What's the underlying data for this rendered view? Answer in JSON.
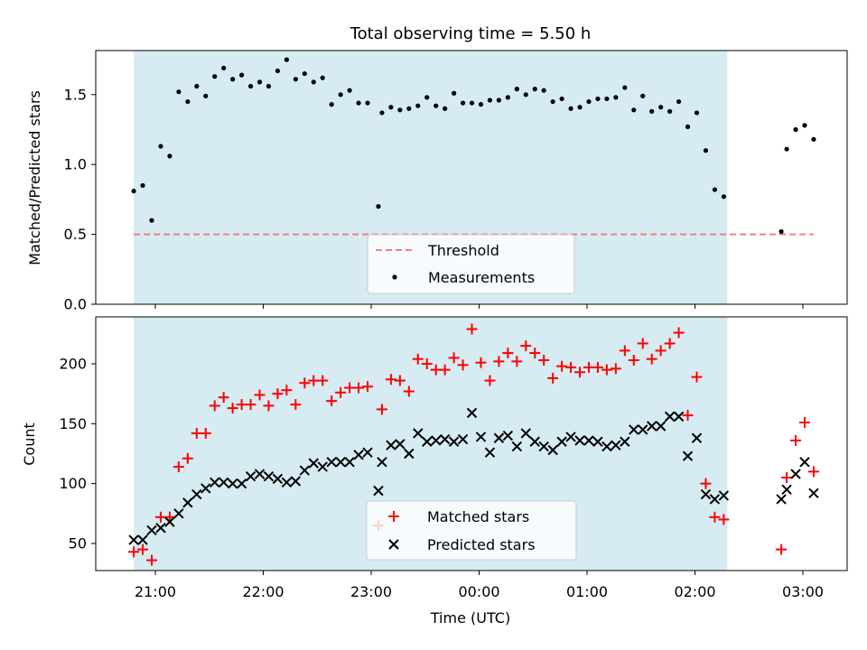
{
  "chart_data": [
    {
      "type": "scatter",
      "title": "Total observing time = 5.50 h",
      "xlabel": "",
      "ylabel": "Matched/Predicted stars",
      "ylim": [
        0,
        1.82
      ],
      "yticks": [
        "0.0",
        "0.5",
        "1.0",
        "1.5"
      ],
      "x_tick_labels": [],
      "shaded_span": {
        "start": "20:48",
        "end": "02:18"
      },
      "legend_placement": "lower center",
      "threshold": {
        "name": "Threshold",
        "value": 0.5,
        "x_start": "20:48",
        "x_end": "03:06",
        "color": "#f08080"
      },
      "series": [
        {
          "name": "Measurements",
          "color": "#000000",
          "marker": "dot",
          "points": [
            [
              "20:48",
              0.81
            ],
            [
              "20:53",
              0.85
            ],
            [
              "20:58",
              0.6
            ],
            [
              "21:03",
              1.13
            ],
            [
              "21:08",
              1.06
            ],
            [
              "21:13",
              1.52
            ],
            [
              "21:18",
              1.45
            ],
            [
              "21:23",
              1.56
            ],
            [
              "21:28",
              1.49
            ],
            [
              "21:33",
              1.63
            ],
            [
              "21:38",
              1.69
            ],
            [
              "21:43",
              1.61
            ],
            [
              "21:48",
              1.64
            ],
            [
              "21:53",
              1.56
            ],
            [
              "21:58",
              1.59
            ],
            [
              "22:03",
              1.56
            ],
            [
              "22:08",
              1.67
            ],
            [
              "22:13",
              1.75
            ],
            [
              "22:18",
              1.61
            ],
            [
              "22:23",
              1.65
            ],
            [
              "22:28",
              1.59
            ],
            [
              "22:33",
              1.62
            ],
            [
              "22:38",
              1.43
            ],
            [
              "22:43",
              1.5
            ],
            [
              "22:48",
              1.53
            ],
            [
              "22:53",
              1.44
            ],
            [
              "22:58",
              1.44
            ],
            [
              "23:04",
              0.7
            ],
            [
              "23:06",
              1.37
            ],
            [
              "23:11",
              1.41
            ],
            [
              "23:16",
              1.39
            ],
            [
              "23:21",
              1.4
            ],
            [
              "23:26",
              1.42
            ],
            [
              "23:31",
              1.48
            ],
            [
              "23:36",
              1.42
            ],
            [
              "23:41",
              1.4
            ],
            [
              "23:46",
              1.51
            ],
            [
              "23:51",
              1.44
            ],
            [
              "23:56",
              1.44
            ],
            [
              "00:01",
              1.43
            ],
            [
              "00:06",
              1.46
            ],
            [
              "00:11",
              1.46
            ],
            [
              "00:16",
              1.48
            ],
            [
              "00:21",
              1.54
            ],
            [
              "00:26",
              1.5
            ],
            [
              "00:31",
              1.54
            ],
            [
              "00:36",
              1.53
            ],
            [
              "00:41",
              1.45
            ],
            [
              "00:46",
              1.47
            ],
            [
              "00:51",
              1.4
            ],
            [
              "00:56",
              1.41
            ],
            [
              "01:01",
              1.45
            ],
            [
              "01:06",
              1.47
            ],
            [
              "01:11",
              1.47
            ],
            [
              "01:16",
              1.48
            ],
            [
              "01:21",
              1.55
            ],
            [
              "01:26",
              1.39
            ],
            [
              "01:31",
              1.49
            ],
            [
              "01:36",
              1.38
            ],
            [
              "01:41",
              1.41
            ],
            [
              "01:46",
              1.38
            ],
            [
              "01:51",
              1.45
            ],
            [
              "01:56",
              1.27
            ],
            [
              "02:01",
              1.37
            ],
            [
              "02:06",
              1.1
            ],
            [
              "02:11",
              0.82
            ],
            [
              "02:16",
              0.77
            ],
            [
              "02:48",
              0.52
            ],
            [
              "02:51",
              1.11
            ],
            [
              "02:56",
              1.25
            ],
            [
              "03:01",
              1.28
            ],
            [
              "03:06",
              1.18
            ]
          ]
        }
      ]
    },
    {
      "type": "scatter",
      "title": "",
      "xlabel": "Time (UTC)",
      "ylabel": "Count",
      "ylim": [
        25,
        240
      ],
      "yticks": [
        "50",
        "100",
        "150",
        "200"
      ],
      "x_tick_labels": [
        "21:00",
        "22:00",
        "23:00",
        "00:00",
        "01:00",
        "02:00",
        "03:00"
      ],
      "shaded_span": {
        "start": "20:48",
        "end": "02:18"
      },
      "legend_placement": "lower center",
      "series": [
        {
          "name": "Matched stars",
          "color": "#ff0000",
          "marker": "plus",
          "points": [
            [
              "20:48",
              43
            ],
            [
              "20:53",
              45
            ],
            [
              "20:58",
              36
            ],
            [
              "21:03",
              72
            ],
            [
              "21:08",
              72
            ],
            [
              "21:13",
              114
            ],
            [
              "21:18",
              121
            ],
            [
              "21:23",
              142
            ],
            [
              "21:28",
              142
            ],
            [
              "21:33",
              165
            ],
            [
              "21:38",
              172
            ],
            [
              "21:43",
              163
            ],
            [
              "21:48",
              166
            ],
            [
              "21:53",
              166
            ],
            [
              "21:58",
              174
            ],
            [
              "22:03",
              165
            ],
            [
              "22:08",
              175
            ],
            [
              "22:13",
              178
            ],
            [
              "22:18",
              166
            ],
            [
              "22:23",
              184
            ],
            [
              "22:28",
              186
            ],
            [
              "22:33",
              186
            ],
            [
              "22:38",
              169
            ],
            [
              "22:43",
              176
            ],
            [
              "22:48",
              180
            ],
            [
              "22:53",
              180
            ],
            [
              "22:58",
              181
            ],
            [
              "23:04",
              65
            ],
            [
              "23:06",
              162
            ],
            [
              "23:11",
              187
            ],
            [
              "23:16",
              186
            ],
            [
              "23:21",
              177
            ],
            [
              "23:26",
              204
            ],
            [
              "23:31",
              200
            ],
            [
              "23:36",
              195
            ],
            [
              "23:41",
              195
            ],
            [
              "23:46",
              205
            ],
            [
              "23:51",
              199
            ],
            [
              "23:56",
              229
            ],
            [
              "00:01",
              201
            ],
            [
              "00:06",
              186
            ],
            [
              "00:11",
              202
            ],
            [
              "00:16",
              209
            ],
            [
              "00:21",
              202
            ],
            [
              "00:26",
              215
            ],
            [
              "00:31",
              209
            ],
            [
              "00:36",
              203
            ],
            [
              "00:41",
              188
            ],
            [
              "00:46",
              198
            ],
            [
              "00:51",
              197
            ],
            [
              "00:56",
              193
            ],
            [
              "01:01",
              197
            ],
            [
              "01:06",
              197
            ],
            [
              "01:11",
              195
            ],
            [
              "01:16",
              196
            ],
            [
              "01:21",
              211
            ],
            [
              "01:26",
              203
            ],
            [
              "01:31",
              217
            ],
            [
              "01:36",
              204
            ],
            [
              "01:41",
              211
            ],
            [
              "01:46",
              217
            ],
            [
              "01:51",
              226
            ],
            [
              "01:56",
              157
            ],
            [
              "02:01",
              189
            ],
            [
              "02:06",
              100
            ],
            [
              "02:11",
              72
            ],
            [
              "02:16",
              70
            ],
            [
              "02:48",
              45
            ],
            [
              "02:51",
              105
            ],
            [
              "02:56",
              136
            ],
            [
              "03:01",
              151
            ],
            [
              "03:06",
              110
            ]
          ]
        },
        {
          "name": "Predicted stars",
          "color": "#000000",
          "marker": "x",
          "points": [
            [
              "20:48",
              53
            ],
            [
              "20:53",
              53
            ],
            [
              "20:58",
              61
            ],
            [
              "21:03",
              63
            ],
            [
              "21:08",
              68
            ],
            [
              "21:13",
              75
            ],
            [
              "21:18",
              84
            ],
            [
              "21:23",
              91
            ],
            [
              "21:28",
              96
            ],
            [
              "21:33",
              101
            ],
            [
              "21:38",
              101
            ],
            [
              "21:43",
              100
            ],
            [
              "21:48",
              100
            ],
            [
              "21:53",
              106
            ],
            [
              "21:58",
              108
            ],
            [
              "22:03",
              106
            ],
            [
              "22:08",
              104
            ],
            [
              "22:13",
              101
            ],
            [
              "22:18",
              102
            ],
            [
              "22:23",
              111
            ],
            [
              "22:28",
              117
            ],
            [
              "22:33",
              114
            ],
            [
              "22:38",
              118
            ],
            [
              "22:43",
              118
            ],
            [
              "22:48",
              118
            ],
            [
              "22:53",
              124
            ],
            [
              "22:58",
              126
            ],
            [
              "23:04",
              94
            ],
            [
              "23:06",
              118
            ],
            [
              "23:11",
              132
            ],
            [
              "23:16",
              133
            ],
            [
              "23:21",
              125
            ],
            [
              "23:26",
              142
            ],
            [
              "23:31",
              135
            ],
            [
              "23:36",
              136
            ],
            [
              "23:41",
              137
            ],
            [
              "23:46",
              135
            ],
            [
              "23:51",
              137
            ],
            [
              "23:56",
              159
            ],
            [
              "00:01",
              139
            ],
            [
              "00:06",
              126
            ],
            [
              "00:11",
              138
            ],
            [
              "00:16",
              140
            ],
            [
              "00:21",
              131
            ],
            [
              "00:26",
              142
            ],
            [
              "00:31",
              135
            ],
            [
              "00:36",
              131
            ],
            [
              "00:41",
              128
            ],
            [
              "00:46",
              135
            ],
            [
              "00:51",
              139
            ],
            [
              "00:56",
              136
            ],
            [
              "01:01",
              136
            ],
            [
              "01:06",
              135
            ],
            [
              "01:11",
              131
            ],
            [
              "01:16",
              132
            ],
            [
              "01:21",
              135
            ],
            [
              "01:26",
              145
            ],
            [
              "01:31",
              145
            ],
            [
              "01:36",
              148
            ],
            [
              "01:41",
              148
            ],
            [
              "01:46",
              156
            ],
            [
              "01:51",
              156
            ],
            [
              "01:56",
              123
            ],
            [
              "02:01",
              138
            ],
            [
              "02:06",
              91
            ],
            [
              "02:11",
              87
            ],
            [
              "02:16",
              90
            ],
            [
              "02:48",
              87
            ],
            [
              "02:51",
              95
            ],
            [
              "02:56",
              108
            ],
            [
              "03:01",
              118
            ],
            [
              "03:06",
              92
            ]
          ]
        }
      ]
    }
  ]
}
